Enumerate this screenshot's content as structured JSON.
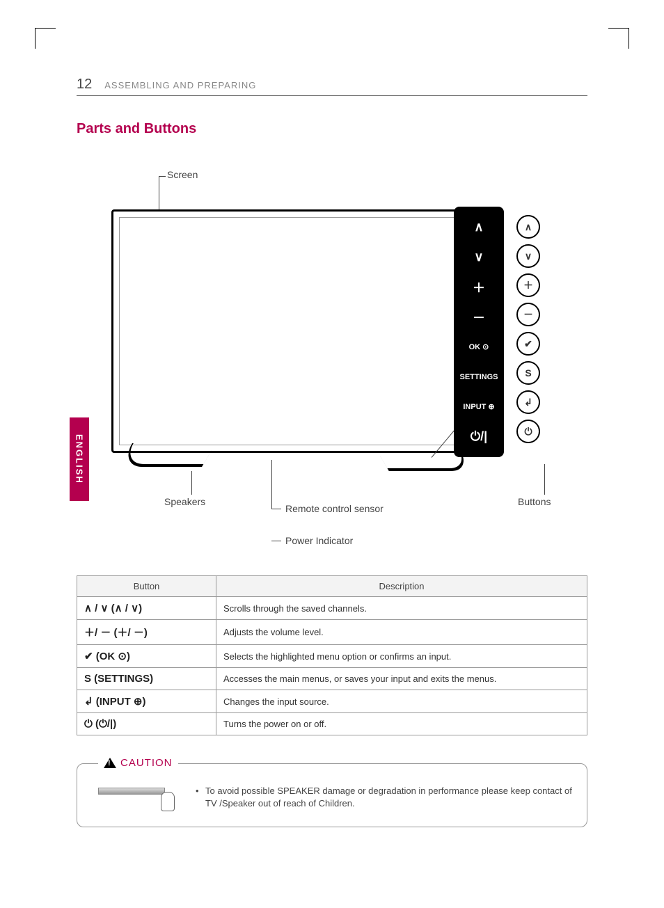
{
  "header": {
    "page_number": "12",
    "section": "ASSEMBLING AND PREPARING"
  },
  "section_title": "Parts and Buttons",
  "language_tab": "ENGLISH",
  "diagram_labels": {
    "screen": "Screen",
    "speakers": "Speakers",
    "remote_sensor": "Remote control sensor",
    "power_indicator": "Power Indicator",
    "buttons": "Buttons"
  },
  "panel": {
    "items": [
      {
        "left": "∧",
        "right": "∧"
      },
      {
        "left": "∨",
        "right": "∨"
      },
      {
        "left": "＋",
        "right": "＋"
      },
      {
        "left": "－",
        "right": "－"
      },
      {
        "left": "OK ⊙",
        "right": "✔"
      },
      {
        "left": "SETTINGS",
        "right": "S"
      },
      {
        "left": "INPUT ⊕",
        "right": "↲"
      },
      {
        "left": "⏻/|",
        "right": "⏻"
      }
    ]
  },
  "table": {
    "headers": {
      "button": "Button",
      "description": "Description"
    },
    "rows": [
      {
        "button": "∧ / ∨ (∧ / ∨)",
        "description": "Scrolls through the saved channels."
      },
      {
        "button": "＋/ － (＋/ －)",
        "description": "Adjusts the volume level."
      },
      {
        "button": "✔ (OK ⊙)",
        "description": "Selects the highlighted menu option or confirms an input."
      },
      {
        "button": "S (SETTINGS)",
        "description": "Accesses the main menus, or saves your input and exits the menus."
      },
      {
        "button": "↲ (INPUT ⊕)",
        "description": "Changes the input source."
      },
      {
        "button": "⏻ (⏻/|)",
        "description": "Turns the power on or off."
      }
    ]
  },
  "caution": {
    "label": "CAUTION",
    "text": "To avoid possible SPEAKER damage or degradation in performance please keep contact of TV /Speaker out of reach of Children."
  },
  "colors": {
    "accent": "#b4004e",
    "border": "#999999",
    "text": "#444444",
    "bg": "#ffffff",
    "header_bg": "#f3f3f3"
  }
}
